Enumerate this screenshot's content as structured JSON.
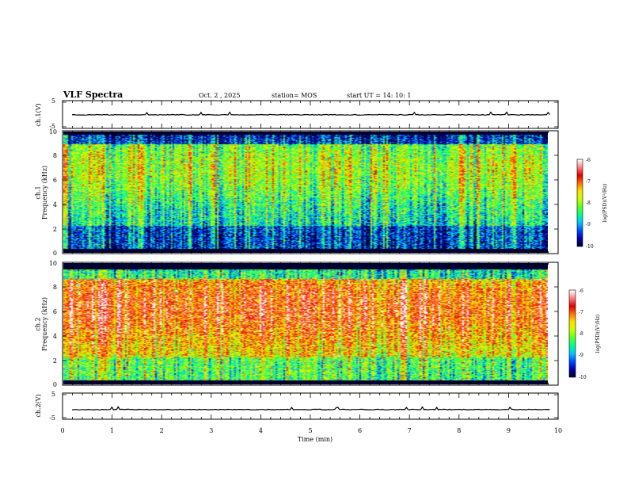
{
  "header": {
    "title": "VLF Spectra",
    "date": "Oct. 2  , 2025",
    "station": "station= MOS",
    "start": "start  UT  =   14: 10: 1"
  },
  "colors": {
    "colormap": [
      "#000030",
      "#0000b0",
      "#0050ff",
      "#00c8ff",
      "#00ff90",
      "#60ff20",
      "#c8ff00",
      "#ffe000",
      "#ff7000",
      "#e00000",
      "#ff8080",
      "#ffffff"
    ]
  },
  "chart_data": [
    {
      "type": "line",
      "ylabel": "ch.1(V)",
      "ylim": [
        -5,
        5
      ],
      "yticks": [
        "5",
        "-5"
      ],
      "series": [
        {
          "values": [
            -0.1,
            -0.1,
            -0.1,
            -0.1,
            -0.1,
            -0.1,
            -0.1,
            -0.1,
            -0.1,
            -0.1
          ]
        }
      ]
    },
    {
      "type": "heatmap",
      "ylabel": "ch.1\nFrequency (kHz)",
      "ylim": [
        0,
        10
      ],
      "yticks": [
        "0",
        "2",
        "4",
        "6",
        "8",
        "10"
      ],
      "colorbar": {
        "label": "log(PSD)(V²/Hz)",
        "ticks": [
          "-6",
          "-7",
          "-8",
          "-9",
          "-10"
        ],
        "range": [
          -10,
          -6
        ]
      },
      "band_khz": [
        0.3,
        9.8
      ],
      "peak_khz": 7.0,
      "level": -8.4
    },
    {
      "type": "heatmap",
      "ylabel": "ch.2\nFrequency (kHz)",
      "ylim": [
        0,
        10
      ],
      "yticks": [
        "0",
        "2",
        "4",
        "6",
        "8",
        "10"
      ],
      "colorbar": {
        "label": "log(PSD)(V²/Hz)",
        "ticks": [
          "-6",
          "-7",
          "-8",
          "-9",
          "-10"
        ],
        "range": [
          -10,
          -6
        ]
      },
      "band_khz": [
        0.3,
        9.5
      ],
      "peak_khz": 6.3,
      "level": -7.4
    },
    {
      "type": "line",
      "ylabel": "ch.2(V)",
      "ylim": [
        -5,
        5
      ],
      "yticks": [
        "5",
        "-5"
      ],
      "series": [
        {
          "values": [
            -1.3,
            -1.3,
            -1.3,
            -1.3,
            -1.3,
            -1.3,
            -1.3,
            -1.3,
            -1.3,
            -1.3
          ]
        }
      ]
    }
  ],
  "xaxis": {
    "label": "Time  (min)",
    "ticks": [
      "0",
      "1",
      "2",
      "3",
      "4",
      "5",
      "6",
      "7",
      "8",
      "9",
      "10"
    ],
    "xlim": [
      0,
      10
    ],
    "data_end_min": 9.83
  }
}
